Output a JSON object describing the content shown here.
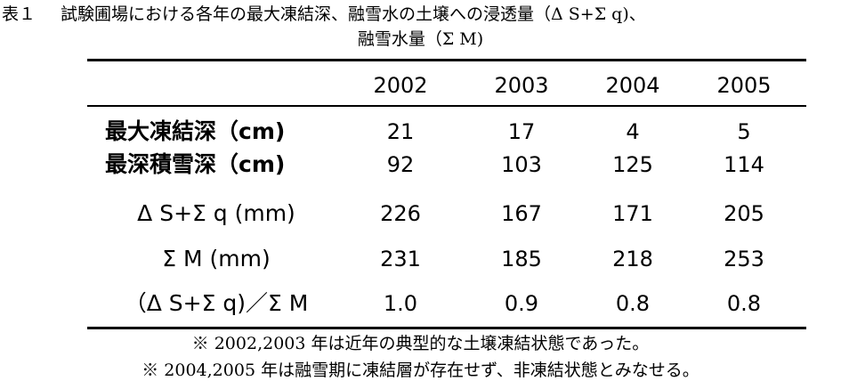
{
  "caption": {
    "prefix": "表１",
    "line1": "試験圃場における各年の最大凍結深、融雪水の土壌への浸透量（Δ S+Σ q)、",
    "line2": "融雪水量（Σ M)"
  },
  "table": {
    "years": [
      "2002",
      "2003",
      "2004",
      "2005"
    ],
    "rows": [
      {
        "label": "最大凍結深（cm)",
        "values": [
          "21",
          "17",
          "4",
          "5"
        ]
      },
      {
        "label": "最深積雪深（cm)",
        "values": [
          "92",
          "103",
          "125",
          "114"
        ]
      },
      {
        "label": "Δ S+Σ q (mm)",
        "values": [
          "226",
          "167",
          "171",
          "205"
        ]
      },
      {
        "label": "Σ M (mm)",
        "values": [
          "231",
          "185",
          "218",
          "253"
        ]
      },
      {
        "label": "（Δ S+Σ q)／Σ M",
        "values": [
          "1.0",
          "0.9",
          "0.8",
          "0.8"
        ]
      }
    ]
  },
  "notes": [
    "※ 2002,2003 年は近年の典型的な土壌凍結状態であった。",
    "※ 2004,2005 年は融雪期に凍結層が存在せず、非凍結状態とみなせる。"
  ]
}
